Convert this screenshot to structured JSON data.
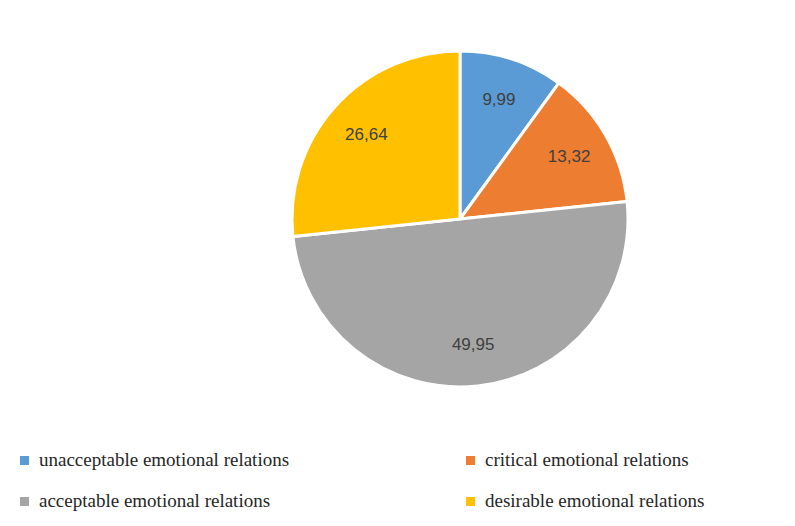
{
  "chart_data": {
    "type": "pie",
    "categories": [
      "unacceptable emotional relations",
      "critical emotional relations",
      "acceptable emotional relations",
      "desirable emotional relations"
    ],
    "values": [
      9.99,
      13.32,
      49.95,
      26.64
    ],
    "value_labels": [
      "9,99",
      "13,32",
      "49,95",
      "26,64"
    ],
    "colors": [
      "#5b9bd5",
      "#ed7d31",
      "#a5a5a5",
      "#ffc000"
    ],
    "data_labels": true,
    "legend": "bottom"
  }
}
